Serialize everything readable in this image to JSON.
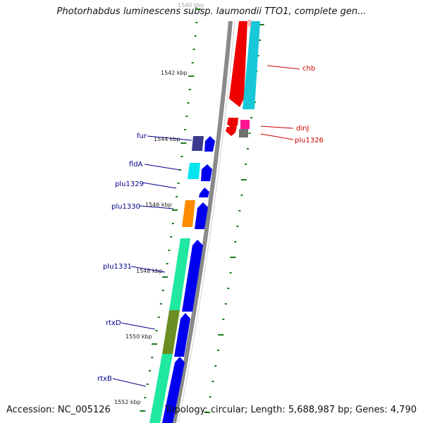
{
  "title": "Photorhabdus luminescens subsp. laumondii TTO1, complete gen...",
  "accession": "Accession: NC_005126",
  "stats": "Topology: circular; Length: 5,688,987 bp; Genes: 4,790",
  "ruler_labels": [
    "1540 kbp",
    "1542 kbp",
    "1544 kbp",
    "1546 kbp",
    "1548 kbp",
    "1550 kbp",
    "1552 kbp"
  ],
  "gene_labels": {
    "left": [
      "fur",
      "fldA",
      "plu1329",
      "plu1330",
      "plu1331",
      "rtxD",
      "rtxB"
    ],
    "right": [
      "chb",
      "dinJ",
      "plu1326"
    ]
  },
  "colors": {
    "label_left": "#00008b",
    "label_right": "#cc0000",
    "tick": "#1a7a1a",
    "backbone": "#8a8a8a",
    "cds_forward": "#0000ee",
    "cds_red": "#ee0000",
    "cds_cyan": "#18c8d8",
    "cds_teal": "#20e8a0",
    "cds_orange": "#ff8c00",
    "cds_olive": "#6b8e23",
    "cds_navy": "#3a3a8c",
    "cds_magenta": "#ff1493",
    "cds_gray": "#707070"
  }
}
